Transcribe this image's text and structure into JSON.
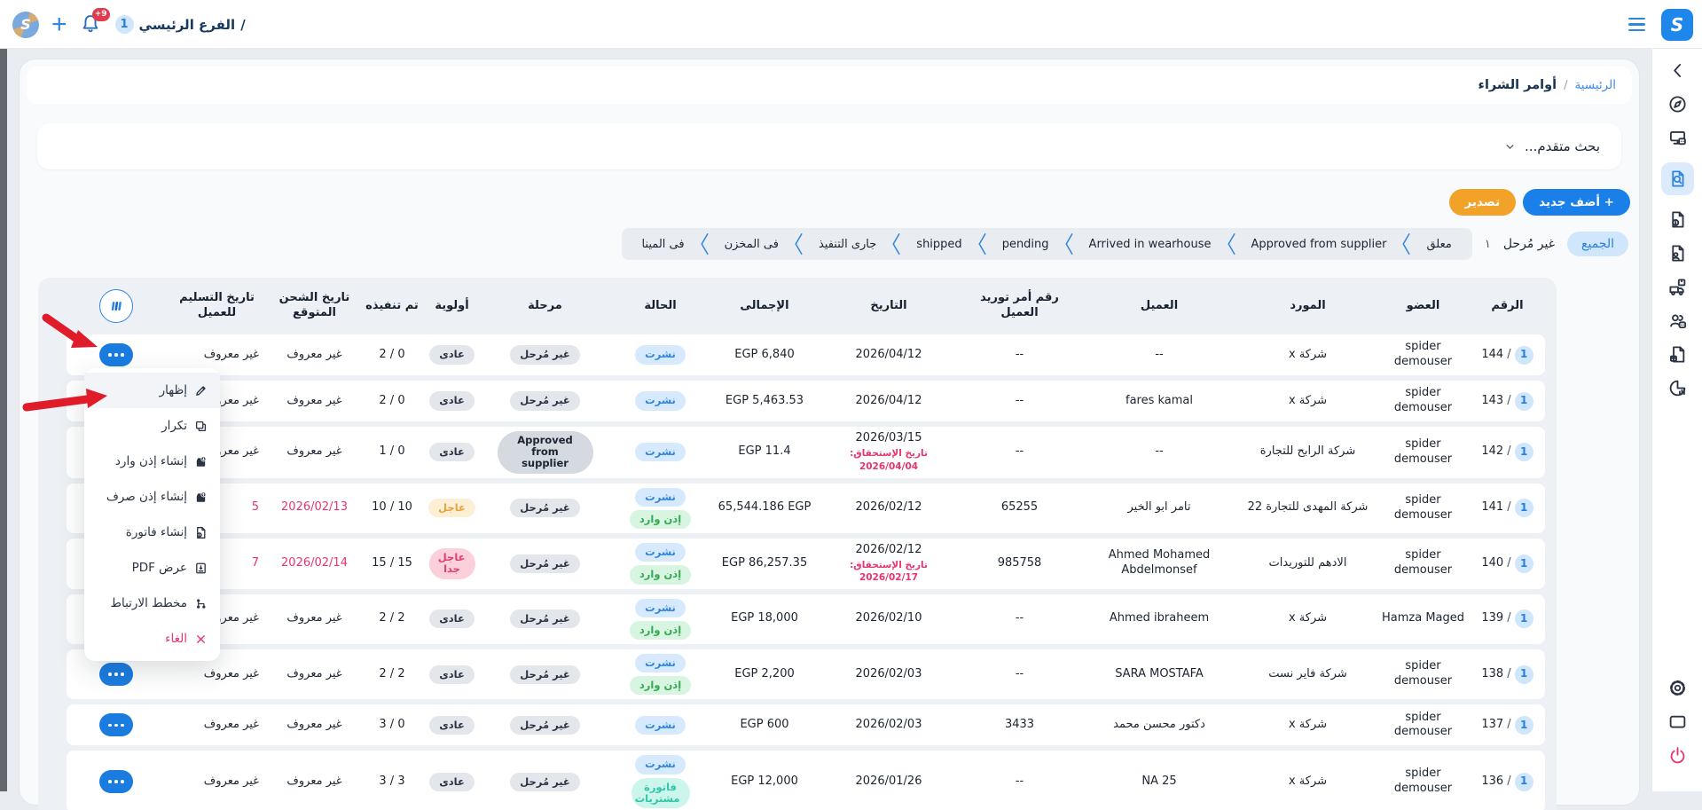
{
  "topbar": {
    "branch_badge": "1",
    "title": "الفرع الرئيسي",
    "separator": "/",
    "notification_badge": "+9",
    "app_logo_letter": "S"
  },
  "breadcrumb": {
    "home": "الرئيسية",
    "separator": "/",
    "current": "أوامر الشراء"
  },
  "search": {
    "label": "بحث متقدم..."
  },
  "actions": {
    "add_label": "+ أضف جديد",
    "export_label": "تصدير"
  },
  "filters": {
    "all_label": "الجميع",
    "unposted_label": "غير مُرحل",
    "count": "١",
    "stages": [
      "معلق",
      "Approved from supplier",
      "Arrived in wearhouse",
      "pending",
      "shipped",
      "جارى التنفيذ",
      "فى المخزن",
      "فى المينا"
    ]
  },
  "sidebar": {
    "top": [
      {
        "name": "collapse",
        "icon": "chevron-left"
      },
      {
        "name": "dashboard",
        "icon": "compass"
      },
      {
        "name": "pos",
        "icon": "pos"
      },
      {
        "name": "purchase-orders",
        "icon": "doc-search",
        "active": true
      },
      {
        "name": "invoices",
        "icon": "doc-info"
      },
      {
        "name": "clients",
        "icon": "doc-user"
      },
      {
        "name": "shipping",
        "icon": "truck"
      },
      {
        "name": "users",
        "icon": "users"
      },
      {
        "name": "products",
        "icon": "doc-box"
      },
      {
        "name": "reports",
        "icon": "pie"
      }
    ],
    "bottom": [
      {
        "name": "settings",
        "icon": "gear"
      },
      {
        "name": "kiosk",
        "icon": "kiosk"
      },
      {
        "name": "logout",
        "icon": "power",
        "danger": true
      }
    ]
  },
  "context_menu": {
    "items": [
      {
        "name": "show",
        "icon": "edit",
        "label": "إظهار",
        "highlighted": true
      },
      {
        "name": "duplicate",
        "icon": "copy",
        "label": "تكرار"
      },
      {
        "name": "create-receive-permit",
        "icon": "import",
        "label": "إنشاء إذن وارد"
      },
      {
        "name": "create-issue-permit",
        "icon": "export",
        "label": "إنشاء إذن صرف"
      },
      {
        "name": "create-invoice",
        "icon": "invoice",
        "label": "إنشاء فاتورة"
      },
      {
        "name": "view-pdf",
        "icon": "pdf",
        "label": "عرض PDF"
      },
      {
        "name": "link-map",
        "icon": "linkmap",
        "label": "مخطط الارتباط"
      },
      {
        "name": "cancel",
        "icon": "cancel",
        "label": "الغاء",
        "danger": true
      }
    ]
  },
  "table": {
    "columns": [
      "الرقم",
      "العضو",
      "المورد",
      "العميل",
      "رقم أمر توريد العميل",
      "التاريخ",
      "الإجمالى",
      "الحالة",
      "مرحلة",
      "أولوية",
      "تم تنفيذه",
      "تاريخ الشحن المتوقع",
      "تاريخ التسليم للعميل"
    ],
    "row_badge": "1",
    "rows": [
      {
        "num": "144",
        "member": "spider demouser",
        "supplier": "شركة x",
        "client": "--",
        "client_po": "--",
        "date": "2026/04/12",
        "due": [],
        "total": "EGP 6,840",
        "status": [
          {
            "label": "نشرت",
            "type": "blue"
          }
        ],
        "stage": {
          "label": "غير مُرحل",
          "type": "gray"
        },
        "priority": {
          "label": "عادى",
          "type": "gray"
        },
        "executed": "2 / 0",
        "ship": {
          "label": "غير معروف",
          "red": false
        },
        "delivery": {
          "label": "غير معروف",
          "red": false
        }
      },
      {
        "num": "143",
        "member": "spider demouser",
        "supplier": "شركة x",
        "client": "fares kamal",
        "client_po": "--",
        "date": "2026/04/12",
        "due": [],
        "total": "EGP 5,463.53",
        "status": [
          {
            "label": "نشرت",
            "type": "blue"
          }
        ],
        "stage": {
          "label": "غير مُرحل",
          "type": "gray"
        },
        "priority": {
          "label": "عادى",
          "type": "gray"
        },
        "executed": "2 / 0",
        "ship": {
          "label": "غير معروف",
          "red": false
        },
        "delivery": {
          "label": "غير معروف",
          "red": false
        }
      },
      {
        "num": "142",
        "member": "spider demouser",
        "supplier": "شركة الرابح للتجارة",
        "client": "--",
        "client_po": "--",
        "date": "2026/03/15",
        "due": [
          "تاريخ الإستحقاق:",
          "2026/04/04"
        ],
        "total": "EGP 11.4",
        "status": [
          {
            "label": "نشرت",
            "type": "blue"
          }
        ],
        "stage": {
          "label": "Approved from supplier",
          "type": "dark"
        },
        "priority": {
          "label": "عادى",
          "type": "gray"
        },
        "executed": "1 / 0",
        "ship": {
          "label": "غير معروف",
          "red": false
        },
        "delivery": {
          "label": "غير معروف",
          "red": false
        }
      },
      {
        "num": "141",
        "member": "spider demouser",
        "supplier": "شركة المهدى للتجارة 22",
        "client": "تامر ابو الخير",
        "client_po": "65255",
        "date": "2026/02/12",
        "due": [],
        "total": "65,544.186 EGP",
        "status": [
          {
            "label": "نشرت",
            "type": "blue"
          },
          {
            "label": "إذن وارد",
            "type": "green"
          }
        ],
        "stage": {
          "label": "غير مُرحل",
          "type": "gray"
        },
        "priority": {
          "label": "عاجل",
          "type": "amber"
        },
        "executed": "10 / 10",
        "ship": {
          "label": "2026/02/13",
          "red": true
        },
        "delivery": {
          "label": "5",
          "red": true
        }
      },
      {
        "num": "140",
        "member": "spider demouser",
        "supplier": "الادهم للتوريدات",
        "client": "Ahmed Mohamed Abdelmonsef",
        "client_po": "985758",
        "date": "2026/02/12",
        "due": [
          "تاريخ الإستحقاق: 2026/02/17"
        ],
        "total": "EGP 86,257.35",
        "status": [
          {
            "label": "نشرت",
            "type": "blue"
          },
          {
            "label": "إذن وارد",
            "type": "green"
          }
        ],
        "stage": {
          "label": "غير مُرحل",
          "type": "gray"
        },
        "priority": {
          "label": "عاجل جدا",
          "type": "pink"
        },
        "executed": "15 / 15",
        "ship": {
          "label": "2026/02/14",
          "red": true
        },
        "delivery": {
          "label": "7",
          "red": true
        }
      },
      {
        "num": "139",
        "member": "Hamza Maged",
        "supplier": "شركة x",
        "client": "Ahmed ibraheem",
        "client_po": "--",
        "date": "2026/02/10",
        "due": [],
        "total": "EGP 18,000",
        "status": [
          {
            "label": "نشرت",
            "type": "blue"
          },
          {
            "label": "إذن وارد",
            "type": "green"
          }
        ],
        "stage": {
          "label": "غير مُرحل",
          "type": "gray"
        },
        "priority": {
          "label": "عادى",
          "type": "gray"
        },
        "executed": "2 / 2",
        "ship": {
          "label": "غير معروف",
          "red": false
        },
        "delivery": {
          "label": "غير معروف",
          "red": false
        }
      },
      {
        "num": "138",
        "member": "spider demouser",
        "supplier": "شركة فاير نست",
        "client": "SARA MOSTAFA",
        "client_po": "--",
        "date": "2026/02/03",
        "due": [],
        "total": "EGP 2,200",
        "status": [
          {
            "label": "نشرت",
            "type": "blue"
          },
          {
            "label": "إذن وارد",
            "type": "green"
          }
        ],
        "stage": {
          "label": "غير مُرحل",
          "type": "gray"
        },
        "priority": {
          "label": "عادى",
          "type": "gray"
        },
        "executed": "2 / 2",
        "ship": {
          "label": "غير معروف",
          "red": false
        },
        "delivery": {
          "label": "غير معروف",
          "red": false
        }
      },
      {
        "num": "137",
        "member": "spider demouser",
        "supplier": "شركة x",
        "client": "دكتور محسن محمد",
        "client_po": "3433",
        "date": "2026/02/03",
        "due": [],
        "total": "EGP 600",
        "status": [
          {
            "label": "نشرت",
            "type": "blue"
          }
        ],
        "stage": {
          "label": "غير مُرحل",
          "type": "gray"
        },
        "priority": {
          "label": "عادى",
          "type": "gray"
        },
        "executed": "3 / 0",
        "ship": {
          "label": "غير معروف",
          "red": false
        },
        "delivery": {
          "label": "غير معروف",
          "red": false
        }
      },
      {
        "num": "136",
        "member": "spider demouser",
        "supplier": "شركة x",
        "client": "NA 25",
        "client_po": "--",
        "date": "2026/01/26",
        "due": [],
        "total": "EGP 12,000",
        "status": [
          {
            "label": "نشرت",
            "type": "blue"
          },
          {
            "label": "فاتورة مشتريات",
            "type": "mint"
          }
        ],
        "stage": {
          "label": "غير مُرحل",
          "type": "gray"
        },
        "priority": {
          "label": "عادى",
          "type": "gray"
        },
        "executed": "3 / 3",
        "ship": {
          "label": "غير معروف",
          "red": false
        },
        "delivery": {
          "label": "غير معروف",
          "red": false
        }
      }
    ]
  },
  "colors": {
    "primary": "#1f7fe0",
    "primary-light": "#cfe6fb",
    "orange": "#f2a129",
    "danger": "#e8356d",
    "dark": "#1b2430"
  }
}
